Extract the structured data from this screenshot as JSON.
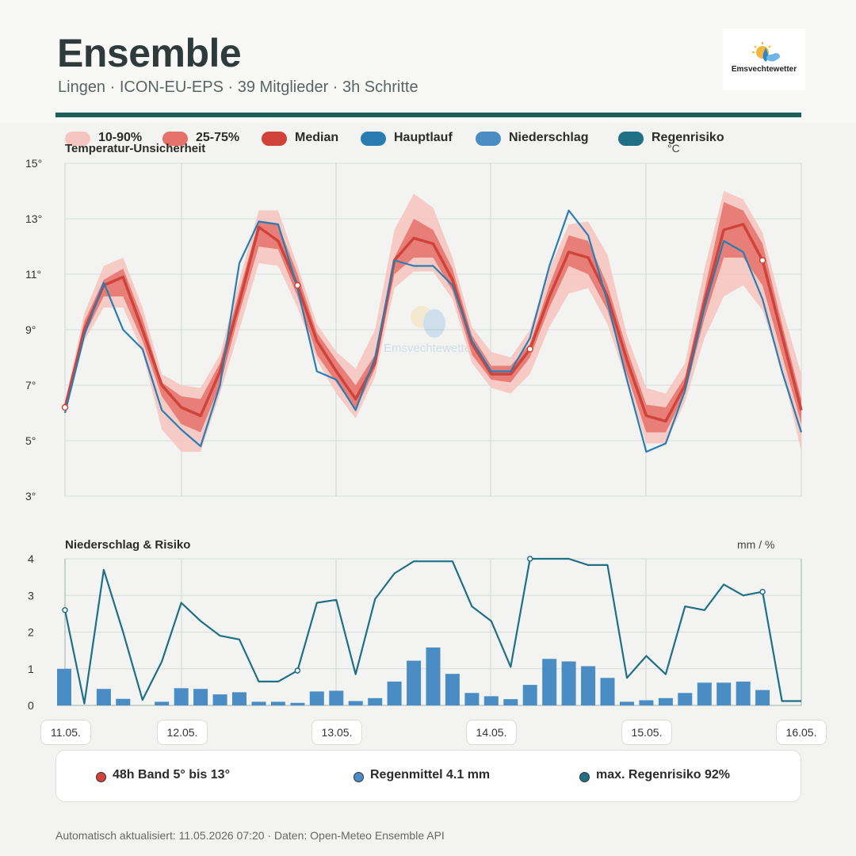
{
  "header": {
    "title": "Ensemble",
    "subtitle": "Lingen · ICON-EU-EPS · 39 Mitglieder · 3h Schritte",
    "logo_text": "Emsvechtewetter",
    "watermark_text": "Emsvechtewetter"
  },
  "legend": [
    {
      "label": "10-90%",
      "color": "#f6c5c0"
    },
    {
      "label": "25-75%",
      "color": "#e4726a"
    },
    {
      "label": "Median",
      "color": "#d0433a"
    },
    {
      "label": "Hauptlauf",
      "color": "#2a7db3"
    },
    {
      "label": "Niederschlag",
      "color": "#4a8cc4"
    },
    {
      "label": "Regenrisiko",
      "color": "#1f6f85"
    }
  ],
  "panels": {
    "temp_title": "Temperatur-Unsicherheit",
    "temp_unit": "°C",
    "precip_title": "Niederschlag & Risiko",
    "precip_unit": "mm / %"
  },
  "dates": [
    "11.05.",
    "12.05.",
    "13.05.",
    "14.05.",
    "15.05.",
    "16.05."
  ],
  "summary": [
    {
      "label": "48h Band 5° bis 13°",
      "color": "#d0433a"
    },
    {
      "label": "Regenmittel 4.1 mm",
      "color": "#4a8cc4"
    },
    {
      "label": "max. Regenrisiko 92%",
      "color": "#1f6f85"
    }
  ],
  "footer": "Automatisch aktualisiert: 11.05.2026 07:20 · Daten: Open-Meteo Ensemble API",
  "chart_data": [
    {
      "type": "line",
      "title": "Temperatur-Unsicherheit",
      "ylabel": "°C",
      "ylim": [
        3,
        15
      ],
      "yticks": [
        "3°",
        "5°",
        "7°",
        "9°",
        "11°",
        "13°",
        "15°"
      ],
      "x_steps_hours": 3,
      "x_range_hours": [
        0,
        120
      ],
      "series": [
        {
          "name": "Median",
          "values": [
            6.2,
            9.0,
            10.6,
            10.9,
            9.0,
            7.0,
            6.2,
            5.9,
            7.5,
            10.0,
            12.7,
            12.2,
            10.6,
            8.6,
            7.5,
            6.5,
            7.8,
            11.5,
            12.3,
            12.1,
            10.8,
            8.5,
            7.4,
            7.4,
            8.3,
            10.2,
            11.8,
            11.6,
            10.2,
            7.9,
            5.9,
            5.7,
            7.0,
            10.0,
            12.6,
            12.8,
            11.5,
            8.8,
            6.1
          ]
        },
        {
          "name": "Hauptlauf",
          "values": [
            6.0,
            8.8,
            10.7,
            9.0,
            8.3,
            6.1,
            5.4,
            4.8,
            7.0,
            11.4,
            12.9,
            12.8,
            10.5,
            7.5,
            7.2,
            6.1,
            8.0,
            11.5,
            11.3,
            11.3,
            10.6,
            8.6,
            7.5,
            7.5,
            8.7,
            11.3,
            13.3,
            12.4,
            10.0,
            7.2,
            4.6,
            4.9,
            6.8,
            9.8,
            12.2,
            11.8,
            10.1,
            7.5,
            5.3
          ]
        },
        {
          "name": "25-75% unten",
          "values": [
            6.1,
            8.8,
            10.2,
            10.2,
            8.6,
            6.6,
            5.6,
            5.3,
            7.0,
            9.6,
            12.0,
            11.9,
            10.2,
            8.1,
            7.1,
            6.1,
            7.6,
            11.0,
            11.6,
            11.6,
            10.4,
            8.1,
            7.2,
            7.1,
            8.0,
            9.8,
            11.3,
            11.0,
            9.7,
            7.4,
            5.3,
            5.3,
            6.7,
            9.4,
            11.6,
            11.6,
            10.6,
            8.1,
            5.6
          ]
        },
        {
          "name": "25-75% oben",
          "values": [
            6.3,
            9.3,
            10.8,
            11.2,
            9.4,
            7.1,
            6.6,
            6.5,
            7.8,
            10.4,
            12.9,
            12.8,
            11.0,
            8.9,
            7.9,
            7.0,
            8.1,
            11.6,
            13.0,
            12.6,
            11.2,
            8.8,
            7.7,
            7.7,
            8.5,
            10.6,
            12.4,
            12.2,
            10.6,
            8.3,
            6.3,
            6.2,
            7.3,
            10.4,
            13.6,
            13.3,
            12.1,
            9.2,
            6.5
          ]
        },
        {
          "name": "10-90% unten",
          "values": [
            5.9,
            8.6,
            9.8,
            9.8,
            8.2,
            5.4,
            4.6,
            4.6,
            6.7,
            9.0,
            11.4,
            11.3,
            9.8,
            7.9,
            6.7,
            5.8,
            7.3,
            10.5,
            11.1,
            11.1,
            10.1,
            7.8,
            6.9,
            6.7,
            7.4,
            9.1,
            10.3,
            10.5,
            9.2,
            7.1,
            4.9,
            4.9,
            6.4,
            8.7,
            10.2,
            10.6,
            9.7,
            7.6,
            4.6
          ]
        },
        {
          "name": "10-90% oben",
          "values": [
            6.4,
            9.6,
            11.3,
            11.6,
            9.8,
            7.4,
            7.0,
            6.9,
            8.1,
            10.8,
            13.3,
            13.3,
            11.3,
            9.2,
            8.2,
            7.6,
            9.0,
            12.6,
            13.9,
            13.4,
            11.6,
            9.1,
            8.2,
            8.0,
            9.0,
            11.2,
            12.8,
            12.9,
            11.7,
            8.8,
            6.9,
            6.7,
            7.8,
            11.2,
            14.0,
            13.7,
            12.5,
            9.8,
            7.4
          ]
        }
      ]
    },
    {
      "type": "bar",
      "title": "Niederschlag & Risiko",
      "ylabel": "mm / %",
      "ylim": [
        0,
        4
      ],
      "yticks": [
        "0",
        "1",
        "2",
        "3",
        "4"
      ],
      "x_steps_hours": 3,
      "series": [
        {
          "name": "Niederschlag",
          "type": "bar",
          "values": [
            1.0,
            0.0,
            0.45,
            0.18,
            0.0,
            0.1,
            0.47,
            0.45,
            0.3,
            0.36,
            0.1,
            0.1,
            0.07,
            0.38,
            0.4,
            0.12,
            0.2,
            0.65,
            1.22,
            1.58,
            0.86,
            0.34,
            0.25,
            0.17,
            0.56,
            1.27,
            1.2,
            1.07,
            0.75,
            0.1,
            0.14,
            0.2,
            0.34,
            0.62,
            0.62,
            0.65,
            0.42,
            0.0,
            0.0
          ]
        },
        {
          "name": "Regenrisiko",
          "type": "line",
          "values": [
            2.6,
            0.05,
            3.7,
            2.0,
            0.15,
            1.2,
            2.8,
            2.3,
            1.9,
            1.8,
            0.65,
            0.65,
            0.95,
            2.8,
            2.88,
            0.85,
            2.9,
            3.6,
            3.93,
            3.93,
            3.93,
            2.7,
            2.3,
            1.05,
            4.0,
            4.0,
            4.0,
            3.83,
            3.83,
            0.75,
            1.35,
            0.85,
            2.7,
            2.6,
            3.3,
            3.0,
            3.1,
            0.12,
            0.12
          ]
        }
      ]
    }
  ]
}
